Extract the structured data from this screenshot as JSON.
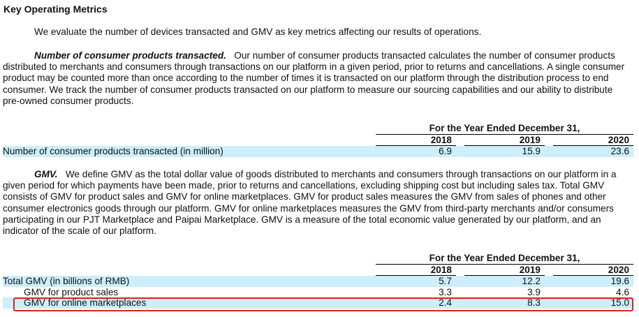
{
  "heading": "Key Operating Metrics",
  "intro": "We evaluate the number of devices transacted and GMV as key metrics affecting our results of operations.",
  "products_para": {
    "lead": "Number of consumer products transacted.",
    "text": "Our number of consumer products transacted calculates the number of consumer products distributed to merchants and consumers through transactions on our platform in a given period, prior to returns and cancellations. A single consumer product may be counted more than once according to the number of times it is transacted on our platform through the distribution process to end consumer. We track the number of consumer products transacted on our platform to measure our sourcing capabilities and our ability to distribute pre-owned consumer products."
  },
  "table1": {
    "period_header": "For the Year Ended December 31,",
    "years": [
      "2018",
      "2019",
      "2020"
    ],
    "rows": [
      {
        "label": "Number of consumer products transacted (in million)",
        "values": [
          "6.9",
          "15.9",
          "23.6"
        ]
      }
    ]
  },
  "gmv_para": {
    "lead": "GMV.",
    "text": "We define GMV as the total dollar value of goods distributed to merchants and consumers through transactions on our platform in a given period for which payments have been made, prior to returns and cancellations, excluding shipping cost but including sales tax. Total GMV consists of GMV for product sales and GMV for online marketplaces. GMV for product sales measures the GMV from sales of phones and other consumer electronics goods through our platform. GMV for online marketplaces measures the GMV from third-party merchants and/or consumers participating in our PJT Marketplace and Paipai Marketplace. GMV is a measure of the total economic value generated by our platform, and an indicator of the scale of our platform."
  },
  "table2": {
    "period_header": "For the Year Ended December 31,",
    "years": [
      "2018",
      "2019",
      "2020"
    ],
    "rows": [
      {
        "label": "Total GMV (in billions of RMB)",
        "values": [
          "5.7",
          "12.2",
          "19.6"
        ]
      },
      {
        "label": "GMV for product sales",
        "values": [
          "3.3",
          "3.9",
          "4.6"
        ]
      },
      {
        "label": "GMV for online marketplaces",
        "values": [
          "2.4",
          "8.3",
          "15.0"
        ]
      }
    ]
  },
  "colors": {
    "row_shade": "#cdeefa",
    "highlight_border": "#d9221c"
  }
}
